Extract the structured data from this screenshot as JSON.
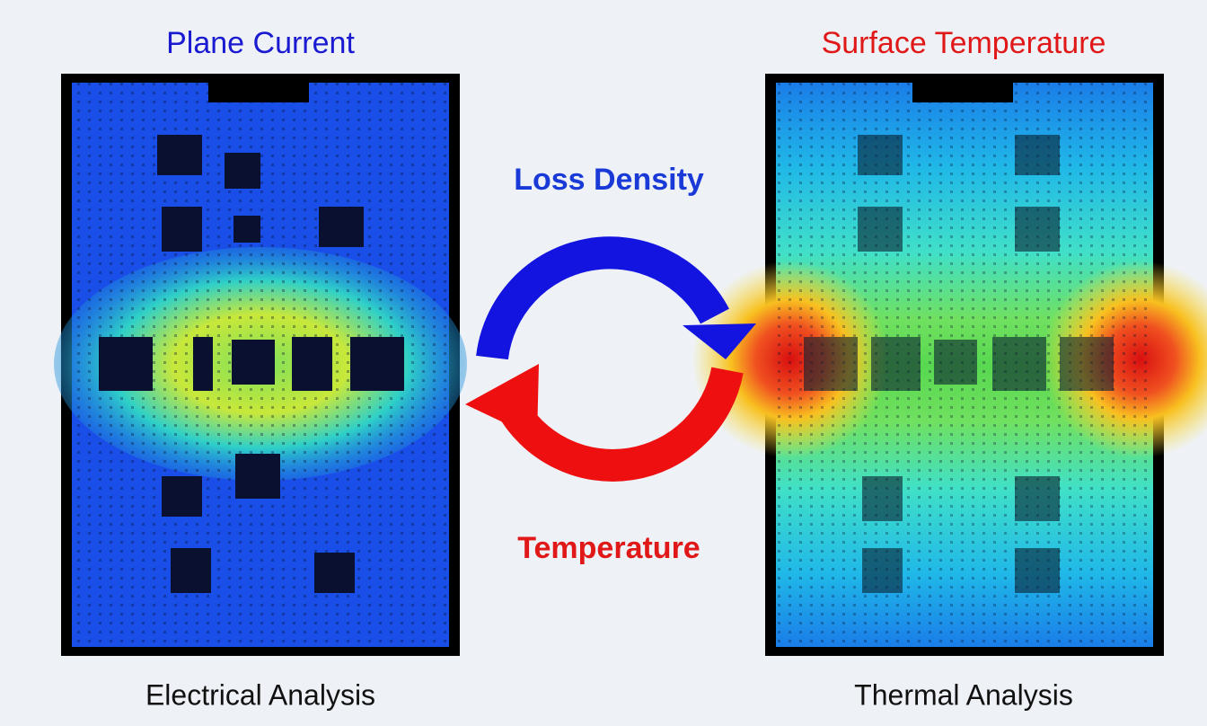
{
  "left_panel": {
    "title": "Plane Current",
    "caption": "Electrical Analysis"
  },
  "right_panel": {
    "title": "Surface Temperature",
    "caption": "Thermal Analysis"
  },
  "cycle": {
    "top_label": "Loss Density",
    "bottom_label": "Temperature"
  }
}
